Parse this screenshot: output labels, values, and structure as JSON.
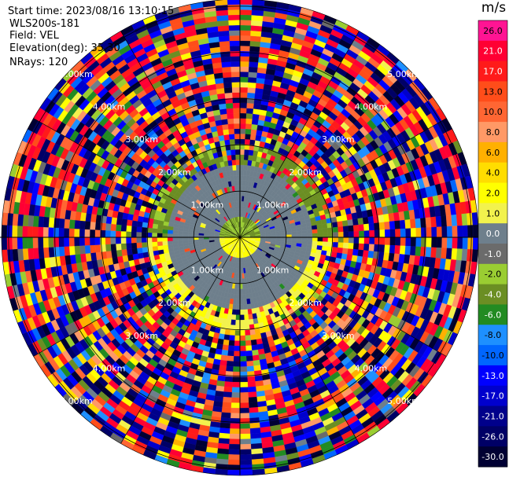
{
  "header": {
    "start_time": "Start time: 2023/08/16 13:10:15",
    "instrument": "WLS200s-181",
    "field": "Field: VEL",
    "elevation": "Elevation(deg): 35.30",
    "nrays": "NRays: 120"
  },
  "colorbar": {
    "title": "m/s",
    "levels": [
      {
        "label": "26.0",
        "color": "#ff1493"
      },
      {
        "label": "21.0",
        "color": "#ff0033"
      },
      {
        "label": "17.0",
        "color": "#ff1a1a"
      },
      {
        "label": "13.0",
        "color": "#ff4d1a"
      },
      {
        "label": "10.0",
        "color": "#ff6633"
      },
      {
        "label": "8.0",
        "color": "#ff9966"
      },
      {
        "label": "6.0",
        "color": "#ffb000"
      },
      {
        "label": "4.0",
        "color": "#ffdd00"
      },
      {
        "label": "2.0",
        "color": "#ffff00"
      },
      {
        "label": "1.0",
        "color": "#f2f24d"
      },
      {
        "label": "0.0",
        "color": "#6e7f8c"
      },
      {
        "label": "-1.0",
        "color": "#6b6b6b"
      },
      {
        "label": "-2.0",
        "color": "#9acd32"
      },
      {
        "label": "-4.0",
        "color": "#6b8e23"
      },
      {
        "label": "-6.0",
        "color": "#228b22"
      },
      {
        "label": "-8.0",
        "color": "#1e90ff"
      },
      {
        "label": "-10.0",
        "color": "#0066ff"
      },
      {
        "label": "-13.0",
        "color": "#0000ff"
      },
      {
        "label": "-17.0",
        "color": "#0000cd"
      },
      {
        "label": "-21.0",
        "color": "#00008b"
      },
      {
        "label": "-26.0",
        "color": "#000066"
      },
      {
        "label": "-30.0",
        "color": "#000033"
      }
    ]
  },
  "chart_data": {
    "type": "heatmap",
    "projection": "polar PPI",
    "field": "VEL",
    "units": "m/s",
    "nrays": 120,
    "range_rings_km": [
      1,
      2,
      3,
      4,
      5
    ],
    "range_ring_labels": [
      "1.00km",
      "2.00km",
      "3.00km",
      "4.00km",
      "5.00km"
    ],
    "max_range_km": 5.15,
    "value_range": [
      -30,
      26
    ],
    "pattern": [
      {
        "range_km": [
          0,
          0.5
        ],
        "description": "near-zero velocities, green/olive in north half, yellow in south half"
      },
      {
        "range_km": [
          0.5,
          1.6
        ],
        "description": "mostly grey (0 m/s) with sparse scattered pixels"
      },
      {
        "range_km": [
          1.6,
          2.0
        ],
        "description": "olive/green to the north, yellow to the south"
      },
      {
        "range_km": [
          2.0,
          5.15
        ],
        "description": "noisy random velocities spanning the full colour scale"
      }
    ]
  }
}
